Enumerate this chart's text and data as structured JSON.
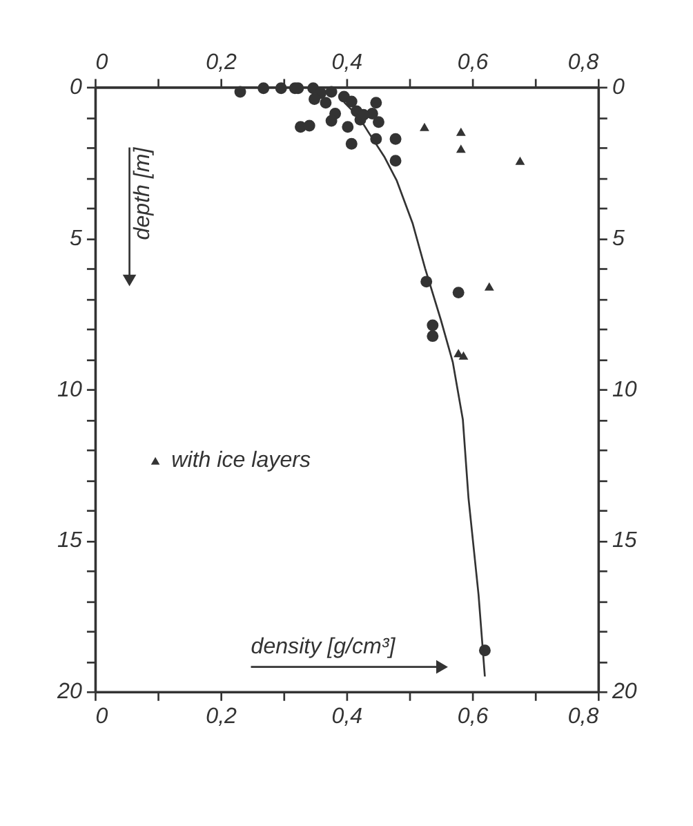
{
  "chart_data": {
    "type": "scatter",
    "xlabel": "density [g/cm³]",
    "ylabel": "depth [m]",
    "xlim": [
      0,
      0.8
    ],
    "ylim": [
      20,
      0
    ],
    "x2lim": [
      0,
      0.8
    ],
    "y2lim": [
      20,
      0
    ],
    "xticks": [
      0,
      {
        "value": 0.1,
        "label": null
      },
      {
        "value": 0.2,
        "label": "0,2"
      },
      {
        "value": 0.3,
        "label": null
      },
      {
        "value": 0.4,
        "label": "0,4"
      },
      {
        "value": 0.5,
        "label": null
      },
      {
        "value": 0.6,
        "label": "0,6"
      },
      {
        "value": 0.7,
        "label": null
      },
      {
        "value": 0.8,
        "label": "0,8"
      }
    ],
    "x2ticks": [
      0,
      {
        "value": 0.1,
        "label": null
      },
      {
        "value": 0.2,
        "label": "0,2"
      },
      {
        "value": 0.3,
        "label": null
      },
      {
        "value": 0.4,
        "label": "0,4"
      },
      {
        "value": 0.5,
        "label": null
      },
      {
        "value": 0.6,
        "label": "0,6"
      },
      {
        "value": 0.7,
        "label": null
      },
      {
        "value": 0.8,
        "label": "0,8"
      }
    ],
    "yticks": [
      0,
      {
        "value": 1,
        "label": null
      },
      {
        "value": 2,
        "label": null
      },
      {
        "value": 3,
        "label": null
      },
      {
        "value": 4,
        "label": null
      },
      5,
      {
        "value": 6,
        "label": null
      },
      {
        "value": 7,
        "label": null
      },
      {
        "value": 8,
        "label": null
      },
      {
        "value": 9,
        "label": null
      },
      10,
      {
        "value": 11,
        "label": null
      },
      {
        "value": 12,
        "label": null
      },
      {
        "value": 13,
        "label": null
      },
      {
        "value": 14,
        "label": null
      },
      15,
      {
        "value": 16,
        "label": null
      },
      {
        "value": 17,
        "label": null
      },
      {
        "value": 18,
        "label": null
      },
      {
        "value": 19,
        "label": null
      },
      20
    ],
    "y2ticks": [
      0,
      {
        "value": 1,
        "label": null
      },
      {
        "value": 2,
        "label": null
      },
      {
        "value": 3,
        "label": null
      },
      {
        "value": 4,
        "label": null
      },
      5,
      {
        "value": 6,
        "label": null
      },
      {
        "value": 7,
        "label": null
      },
      {
        "value": 8,
        "label": null
      },
      {
        "value": 9,
        "label": null
      },
      10,
      {
        "value": 11,
        "label": null
      },
      {
        "value": 12,
        "label": null
      },
      {
        "value": 13,
        "label": null
      },
      {
        "value": 14,
        "label": null
      },
      15,
      {
        "value": 16,
        "label": null
      },
      {
        "value": 17,
        "label": null
      },
      {
        "value": 18,
        "label": null
      },
      {
        "value": 19,
        "label": null
      },
      20
    ],
    "grid": false,
    "legend": "left",
    "series": [
      {
        "marker": "circle",
        "color": "#333333",
        "x": [
          0.231,
          0.268,
          0.296,
          0.318,
          0.323,
          0.347,
          0.359,
          0.376,
          0.349,
          0.367,
          0.396,
          0.408,
          0.382,
          0.376,
          0.402,
          0.422,
          0.447,
          0.441,
          0.451,
          0.327,
          0.341,
          0.447,
          0.478,
          0.408,
          0.478,
          0.416,
          0.427,
          0.527,
          0.578,
          0.537,
          0.537,
          0.62
        ],
        "values": [
          0.16,
          0.04,
          0.04,
          0.04,
          0.04,
          0.04,
          0.2,
          0.16,
          0.4,
          0.52,
          0.32,
          0.48,
          0.88,
          1.12,
          1.32,
          1.08,
          0.52,
          0.88,
          1.16,
          1.32,
          1.28,
          1.72,
          1.72,
          1.88,
          2.44,
          0.8,
          0.92,
          6.44,
          6.8,
          7.88,
          8.24,
          18.64
        ]
      },
      {
        "marker": "triangle",
        "name": "with ice layers",
        "color": "#333333",
        "x": [
          0.524,
          0.582,
          0.582,
          0.676,
          0.627,
          0.578,
          0.586
        ],
        "values": [
          1.32,
          1.48,
          2.04,
          2.44,
          6.6,
          8.8,
          8.88
        ]
      },
      {
        "type": "line",
        "marker": "none",
        "line_style": "solid",
        "color": "#333333",
        "x": [
          0.396,
          0.42,
          0.435,
          0.46,
          0.48,
          0.505,
          0.525,
          0.55,
          0.569,
          0.585,
          0.594,
          0.61,
          0.62
        ],
        "values": [
          0.5,
          1.0,
          1.5,
          2.3,
          3.1,
          4.5,
          6.0,
          7.7,
          9.1,
          11,
          13.6,
          16.8,
          19.5
        ]
      }
    ]
  }
}
